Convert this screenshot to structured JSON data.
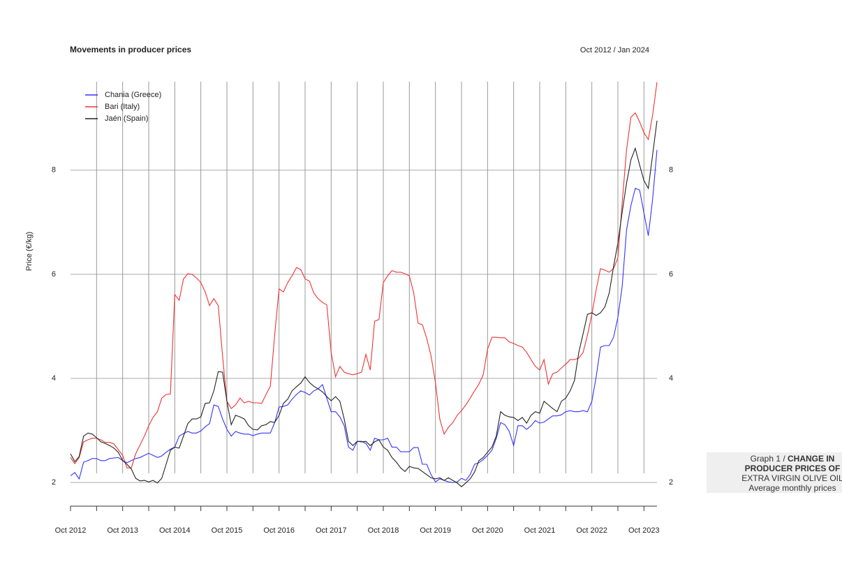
{
  "chart_data": {
    "type": "line",
    "title": "Movements in producer prices",
    "subtitle": "Oct 2012 / Jan 2024",
    "y_label": "Price (€/kg)",
    "x": [
      "Oct 2012",
      "Nov 2012",
      "Dec 2012",
      "Jan 2013",
      "Feb 2013",
      "Mar 2013",
      "Apr 2013",
      "May 2013",
      "Jun 2013",
      "Jul 2013",
      "Aug 2013",
      "Sep 2013",
      "Oct 2013",
      "Nov 2013",
      "Dec 2013",
      "Jan 2014",
      "Feb 2014",
      "Mar 2014",
      "Apr 2014",
      "May 2014",
      "Jun 2014",
      "Jul 2014",
      "Aug 2014",
      "Sep 2014",
      "Oct 2014",
      "Nov 2014",
      "Dec 2014",
      "Jan 2015",
      "Feb 2015",
      "Mar 2015",
      "Apr 2015",
      "May 2015",
      "Jun 2015",
      "Jul 2015",
      "Aug 2015",
      "Sep 2015",
      "Oct 2015",
      "Nov 2015",
      "Dec 2015",
      "Jan 2016",
      "Feb 2016",
      "Mar 2016",
      "Apr 2016",
      "May 2016",
      "Jun 2016",
      "Jul 2016",
      "Aug 2016",
      "Sep 2016",
      "Oct 2016",
      "Nov 2016",
      "Dec 2016",
      "Jan 2017",
      "Feb 2017",
      "Mar 2017",
      "Apr 2017",
      "May 2017",
      "Jun 2017",
      "Jul 2017",
      "Aug 2017",
      "Sep 2017",
      "Oct 2017",
      "Nov 2017",
      "Dec 2017",
      "Jan 2018",
      "Feb 2018",
      "Mar 2018",
      "Apr 2018",
      "May 2018",
      "Jun 2018",
      "Jul 2018",
      "Aug 2018",
      "Sep 2018",
      "Oct 2018",
      "Nov 2018",
      "Dec 2018",
      "Jan 2019",
      "Feb 2019",
      "Mar 2019",
      "Apr 2019",
      "May 2019",
      "Jun 2019",
      "Jul 2019",
      "Aug 2019",
      "Sep 2019",
      "Oct 2019",
      "Nov 2019",
      "Dec 2019",
      "Jan 2020",
      "Feb 2020",
      "Mar 2020",
      "Apr 2020",
      "May 2020",
      "Jun 2020",
      "Jul 2020",
      "Aug 2020",
      "Sep 2020",
      "Oct 2020",
      "Nov 2020",
      "Dec 2020",
      "Jan 2021",
      "Feb 2021",
      "Mar 2021",
      "Apr 2021",
      "May 2021",
      "Jun 2021",
      "Jul 2021",
      "Aug 2021",
      "Sep 2021",
      "Oct 2021",
      "Nov 2021",
      "Dec 2021",
      "Jan 2022",
      "Feb 2022",
      "Mar 2022",
      "Apr 2022",
      "May 2022",
      "Jun 2022",
      "Jul 2022",
      "Aug 2022",
      "Sep 2022",
      "Oct 2022",
      "Nov 2022",
      "Dec 2022",
      "Jan 2023",
      "Feb 2023",
      "Mar 2023",
      "Apr 2023",
      "May 2023",
      "Jun 2023",
      "Jul 2023",
      "Aug 2023",
      "Sep 2023",
      "Oct 2023",
      "Nov 2023",
      "Dec 2023",
      "Jan 2024"
    ],
    "series": [
      {
        "name": "Chania (Greece)",
        "color": "#3333ff",
        "values": [
          2.13,
          2.19,
          2.07,
          2.39,
          2.42,
          2.46,
          2.46,
          2.42,
          2.42,
          2.46,
          2.47,
          2.48,
          2.42,
          2.38,
          2.42,
          2.46,
          2.48,
          2.52,
          2.56,
          2.52,
          2.48,
          2.51,
          2.58,
          2.64,
          2.68,
          2.89,
          2.94,
          2.98,
          2.95,
          2.95,
          2.99,
          3.07,
          3.13,
          3.49,
          3.46,
          3.22,
          3.02,
          2.89,
          2.98,
          2.95,
          2.93,
          2.93,
          2.9,
          2.93,
          2.95,
          2.95,
          2.95,
          3.15,
          3.45,
          3.46,
          3.49,
          3.6,
          3.69,
          3.76,
          3.73,
          3.68,
          3.76,
          3.8,
          3.88,
          3.62,
          3.36,
          3.36,
          3.26,
          3.09,
          2.68,
          2.62,
          2.79,
          2.79,
          2.75,
          2.62,
          2.85,
          2.82,
          2.82,
          2.85,
          2.68,
          2.68,
          2.59,
          2.59,
          2.59,
          2.67,
          2.67,
          2.35,
          2.35,
          2.15,
          2.01,
          2.07,
          2.04,
          2.01,
          2.0,
          2.01,
          2.08,
          2.04,
          2.15,
          2.35,
          2.38,
          2.44,
          2.52,
          2.62,
          2.85,
          3.15,
          3.11,
          2.98,
          2.71,
          3.09,
          3.09,
          3.02,
          3.09,
          3.19,
          3.14,
          3.16,
          3.22,
          3.28,
          3.28,
          3.3,
          3.36,
          3.38,
          3.36,
          3.36,
          3.38,
          3.36,
          3.56,
          4.03,
          4.6,
          4.63,
          4.63,
          4.79,
          5.17,
          5.77,
          6.85,
          7.32,
          7.65,
          7.62,
          7.18,
          6.74,
          7.45,
          8.39
        ]
      },
      {
        "name": "Bari (Italy)",
        "color": "#ee3333",
        "values": [
          2.48,
          2.36,
          2.48,
          2.78,
          2.82,
          2.85,
          2.85,
          2.82,
          2.77,
          2.77,
          2.74,
          2.63,
          2.52,
          2.28,
          2.28,
          2.55,
          2.72,
          2.89,
          3.09,
          3.25,
          3.36,
          3.62,
          3.69,
          3.7,
          5.61,
          5.5,
          5.91,
          6.01,
          6.0,
          5.93,
          5.84,
          5.66,
          5.4,
          5.53,
          5.4,
          4.43,
          3.56,
          3.42,
          3.49,
          3.62,
          3.53,
          3.56,
          3.53,
          3.53,
          3.52,
          3.69,
          3.85,
          4.83,
          5.72,
          5.66,
          5.84,
          5.97,
          6.13,
          6.09,
          5.91,
          5.87,
          5.64,
          5.53,
          5.46,
          5.41,
          4.5,
          4.03,
          4.23,
          4.12,
          4.09,
          4.07,
          4.09,
          4.12,
          4.46,
          4.16,
          5.1,
          5.13,
          5.84,
          5.97,
          6.07,
          6.04,
          6.04,
          6.01,
          5.97,
          5.64,
          5.06,
          5.03,
          4.77,
          4.43,
          3.92,
          3.22,
          2.93,
          3.06,
          3.15,
          3.29,
          3.38,
          3.49,
          3.62,
          3.76,
          3.89,
          4.07,
          4.56,
          4.79,
          4.79,
          4.78,
          4.78,
          4.7,
          4.67,
          4.63,
          4.6,
          4.5,
          4.36,
          4.23,
          4.16,
          4.36,
          3.89,
          4.09,
          4.12,
          4.2,
          4.27,
          4.36,
          4.36,
          4.39,
          4.5,
          4.83,
          5.23,
          5.7,
          6.11,
          6.08,
          6.04,
          6.11,
          6.31,
          7.38,
          8.39,
          9.02,
          9.1,
          8.93,
          8.72,
          8.59,
          9.06,
          9.69
        ]
      },
      {
        "name": "Jaén (Spain)",
        "color": "#222222",
        "values": [
          2.55,
          2.4,
          2.5,
          2.89,
          2.95,
          2.93,
          2.86,
          2.78,
          2.75,
          2.71,
          2.66,
          2.58,
          2.42,
          2.35,
          2.26,
          2.08,
          2.03,
          2.04,
          2.01,
          2.04,
          1.99,
          2.08,
          2.35,
          2.62,
          2.68,
          2.66,
          2.89,
          3.13,
          3.22,
          3.22,
          3.26,
          3.52,
          3.53,
          3.76,
          4.13,
          4.12,
          3.56,
          3.11,
          3.29,
          3.26,
          3.22,
          3.09,
          3.02,
          3.01,
          3.09,
          3.11,
          3.17,
          3.15,
          3.29,
          3.52,
          3.6,
          3.76,
          3.84,
          3.91,
          4.03,
          3.92,
          3.85,
          3.8,
          3.74,
          3.65,
          3.57,
          3.65,
          3.56,
          3.22,
          2.79,
          2.71,
          2.79,
          2.78,
          2.79,
          2.71,
          2.78,
          2.82,
          2.68,
          2.62,
          2.48,
          2.39,
          2.28,
          2.21,
          2.31,
          2.28,
          2.27,
          2.21,
          2.15,
          2.09,
          2.07,
          2.09,
          2.04,
          2.09,
          2.04,
          1.99,
          1.92,
          1.99,
          2.07,
          2.2,
          2.42,
          2.48,
          2.58,
          2.68,
          2.89,
          3.36,
          3.29,
          3.26,
          3.25,
          3.19,
          3.25,
          3.14,
          3.29,
          3.36,
          3.33,
          3.56,
          3.49,
          3.42,
          3.36,
          3.56,
          3.62,
          3.76,
          3.96,
          4.5,
          4.86,
          5.23,
          5.26,
          5.21,
          5.26,
          5.37,
          5.64,
          6.15,
          6.6,
          7.2,
          7.75,
          8.2,
          8.42,
          8.1,
          7.8,
          7.65,
          8.3,
          8.95
        ]
      }
    ],
    "ylim": [
      1.8,
      9.7
    ],
    "yticks": [
      2,
      4,
      6,
      8
    ],
    "xticks": [
      "Oct 2012",
      "Oct 2013",
      "Oct 2014",
      "Oct 2015",
      "Oct 2016",
      "Oct 2017",
      "Oct 2018",
      "Oct 2019",
      "Oct 2020",
      "Oct 2021",
      "Oct 2022",
      "Oct 2023"
    ],
    "xminor": [
      "Apr 2013",
      "Apr 2014",
      "Apr 2015",
      "Apr 2016",
      "Apr 2017",
      "Apr 2018",
      "Apr 2019",
      "Apr 2020",
      "Apr 2021",
      "Apr 2022",
      "Apr 2023"
    ],
    "grid": true,
    "legend": "top-left"
  },
  "caption": {
    "lead": "Graph 1 / ",
    "bold": [
      "CHANGE IN",
      "PRODUCER PRICES OF"
    ],
    "lines": [
      "EXTRA VIRGIN OLIVE OIL",
      "Average monthly prices"
    ]
  }
}
